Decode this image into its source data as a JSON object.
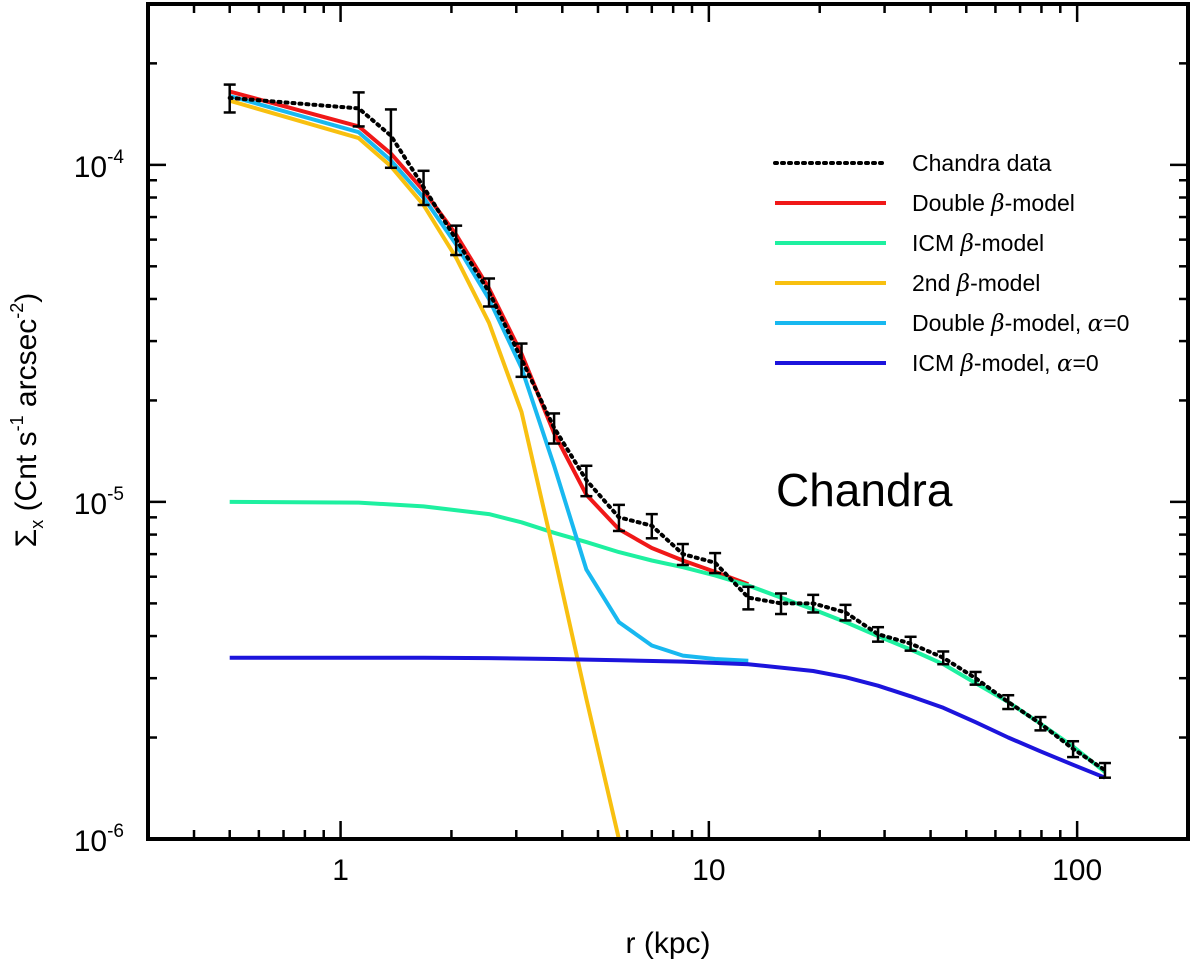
{
  "chart_data": {
    "type": "line",
    "xscale": "log",
    "yscale": "log",
    "xlim": [
      0.3,
      200
    ],
    "ylim": [
      1e-06,
      0.0003
    ],
    "xlabel": "r (kpc)",
    "ylabel": {
      "main": "Σ",
      "sub": "x",
      "rest": " (Cnt s",
      "exp1": "-1",
      "rest2": " arcsec",
      "exp2": "-2",
      "close": ")"
    },
    "x_ticks": [
      {
        "value": 1,
        "label": "1"
      },
      {
        "value": 10,
        "label": "10"
      },
      {
        "value": 100,
        "label": "100"
      }
    ],
    "y_ticks": [
      {
        "value": 0.0001,
        "base": "10",
        "exp": "-4"
      },
      {
        "value": 1e-05,
        "base": "10",
        "exp": "-5"
      },
      {
        "value": 1e-06,
        "base": "10",
        "exp": "-6"
      }
    ],
    "annotation": "Chandra",
    "data_points": {
      "name": "Chandra data",
      "color": "#000000",
      "x": [
        0.5,
        1.12,
        1.37,
        1.68,
        2.06,
        2.53,
        3.1,
        3.8,
        4.65,
        5.7,
        7.0,
        8.5,
        10.4,
        12.8,
        15.7,
        19.2,
        23.5,
        28.8,
        35.3,
        43.3,
        53,
        65,
        79.5,
        97.5,
        119
      ],
      "y": [
        0.000158,
        0.000147,
        0.000122,
        8.6e-05,
        6e-05,
        4.2e-05,
        2.65e-05,
        1.66e-05,
        1.16e-05,
        9e-06,
        8.5e-06,
        7e-06,
        6.6e-06,
        5.2e-06,
        5e-06,
        5e-06,
        4.7e-06,
        4.05e-06,
        3.8e-06,
        3.45e-06,
        3e-06,
        2.55e-06,
        2.2e-06,
        1.85e-06,
        1.6e-06
      ],
      "yerr": [
        1.5e-05,
        1.7e-05,
        2.4e-05,
        1e-05,
        6e-06,
        4e-06,
        3e-06,
        1.7e-06,
        1.2e-06,
        8e-07,
        7e-07,
        5e-07,
        4.5e-07,
        4e-07,
        3.5e-07,
        3e-07,
        2.5e-07,
        2e-07,
        1.8e-07,
        1.5e-07,
        1.3e-07,
        1.2e-07,
        1e-07,
        1e-07,
        8e-08
      ]
    },
    "series": [
      {
        "name": "Double",
        "beta": "β",
        "suffix": "-model",
        "alpha": "",
        "color": "#f01818",
        "x": [
          0.5,
          1.12,
          1.37,
          1.68,
          2.06,
          2.53,
          3.1,
          3.8,
          4.65,
          5.7,
          7.0,
          8.5,
          10.4,
          12.8
        ],
        "y": [
          0.000165,
          0.00013,
          0.000108,
          8.4e-05,
          6.2e-05,
          4.3e-05,
          2.75e-05,
          1.6e-05,
          1.05e-05,
          8.3e-06,
          7.3e-06,
          6.7e-06,
          6.2e-06,
          5.7e-06
        ]
      },
      {
        "name": "ICM",
        "beta": "β",
        "suffix": "-model",
        "alpha": "",
        "color": "#1ef0a0",
        "x": [
          0.5,
          1.12,
          1.68,
          2.53,
          3.1,
          3.8,
          4.65,
          5.7,
          7.0,
          8.5,
          10.4,
          12.8,
          15.7,
          19.2,
          23.5,
          28.8,
          35.3,
          43.3,
          53,
          65,
          79.5,
          97.5,
          119
        ],
        "y": [
          1e-05,
          9.95e-06,
          9.7e-06,
          9.2e-06,
          8.7e-06,
          8.1e-06,
          7.6e-06,
          7.1e-06,
          6.7e-06,
          6.4e-06,
          6.05e-06,
          5.65e-06,
          5.2e-06,
          4.8e-06,
          4.4e-06,
          4e-06,
          3.65e-06,
          3.3e-06,
          2.9e-06,
          2.55e-06,
          2.2e-06,
          1.88e-06,
          1.58e-06
        ]
      },
      {
        "name": "2nd",
        "beta": "β",
        "suffix": "-model",
        "alpha": "",
        "color": "#f8c010",
        "x": [
          0.5,
          1.12,
          1.37,
          1.68,
          2.06,
          2.53,
          3.1,
          3.8,
          4.65,
          5.7
        ],
        "y": [
          0.000155,
          0.00012,
          9.9e-05,
          7.6e-05,
          5.3e-05,
          3.4e-05,
          1.85e-05,
          7e-06,
          2.6e-06,
          1e-06
        ]
      },
      {
        "name": "Double",
        "beta": "β",
        "suffix": "-model,",
        "alpha": "α=0",
        "color": "#18b8f0",
        "x": [
          0.5,
          1.12,
          1.37,
          1.68,
          2.06,
          2.53,
          3.1,
          3.8,
          4.65,
          5.7,
          7.0,
          8.5,
          10.4,
          12.8
        ],
        "y": [
          0.00016,
          0.000125,
          0.000103,
          8e-05,
          5.8e-05,
          4e-05,
          2.5e-05,
          1.28e-05,
          6.3e-06,
          4.4e-06,
          3.75e-06,
          3.5e-06,
          3.42e-06,
          3.38e-06
        ]
      },
      {
        "name": "ICM",
        "beta": "β",
        "suffix": "-model,",
        "alpha": "α=0",
        "color": "#1c14dc",
        "x": [
          0.5,
          1.12,
          1.68,
          2.53,
          3.8,
          5.7,
          8.5,
          12.8,
          19.2,
          23.5,
          28.8,
          35.3,
          43.3,
          53,
          65,
          79.5,
          97.5,
          119
        ],
        "y": [
          3.45e-06,
          3.45e-06,
          3.45e-06,
          3.44e-06,
          3.42e-06,
          3.39e-06,
          3.36e-06,
          3.3e-06,
          3.15e-06,
          3.02e-06,
          2.85e-06,
          2.65e-06,
          2.45e-06,
          2.22e-06,
          2e-06,
          1.82e-06,
          1.66e-06,
          1.52e-06
        ]
      }
    ],
    "legend": {
      "position": "top-right"
    }
  }
}
